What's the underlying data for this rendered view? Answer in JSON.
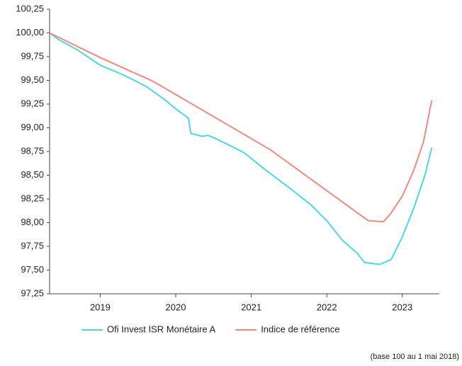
{
  "chart_data": {
    "type": "line",
    "x": [
      2018.33,
      2018.45,
      2018.7,
      2019.0,
      2019.3,
      2019.6,
      2019.7,
      2019.85,
      2020.0,
      2020.17,
      2020.2,
      2020.35,
      2020.43,
      2020.6,
      2020.9,
      2021.2,
      2021.25,
      2021.5,
      2021.8,
      2022.0,
      2022.2,
      2022.4,
      2022.5,
      2022.55,
      2022.7,
      2022.75,
      2022.85,
      2023.0,
      2023.15,
      2023.28,
      2023.3,
      2023.39
    ],
    "series": [
      {
        "name": "Ofi Invest ISR Monétaire A",
        "color": "#4dd6e6",
        "values": [
          100.0,
          99.93,
          99.82,
          99.66,
          99.56,
          99.44,
          null,
          99.3,
          99.2,
          99.1,
          98.94,
          98.91,
          98.92,
          98.86,
          98.74,
          98.55,
          null,
          98.37,
          98.18,
          98.02,
          97.82,
          97.68,
          97.58,
          null,
          97.56,
          null,
          97.61,
          97.85,
          98.15,
          null,
          98.5,
          98.79
        ]
      },
      {
        "name": "Indice de référence",
        "color": "#f2897f",
        "values": [
          100.0,
          null,
          null,
          99.74,
          null,
          null,
          99.49,
          null,
          null,
          null,
          null,
          null,
          null,
          null,
          null,
          null,
          98.77,
          null,
          null,
          null,
          null,
          null,
          null,
          98.02,
          null,
          98.01,
          98.1,
          98.28,
          98.55,
          98.85,
          null,
          99.29
        ]
      }
    ],
    "xlim": [
      2018.33,
      2023.49
    ],
    "xticks": [
      2019,
      2020,
      2021,
      2022,
      2023
    ],
    "ylim": [
      97.25,
      100.25
    ],
    "yticks": [
      {
        "value": 97.25,
        "label": "97,25"
      },
      {
        "value": 97.5,
        "label": "97,50"
      },
      {
        "value": 97.75,
        "label": "97,75"
      },
      {
        "value": 98.0,
        "label": "98,00"
      },
      {
        "value": 98.25,
        "label": "98,25"
      },
      {
        "value": 98.5,
        "label": "98,50"
      },
      {
        "value": 98.75,
        "label": "98,75"
      },
      {
        "value": 99.0,
        "label": "99,00"
      },
      {
        "value": 99.25,
        "label": "99,25"
      },
      {
        "value": 99.5,
        "label": "99,50"
      },
      {
        "value": 99.75,
        "label": "99,75"
      },
      {
        "value": 100.0,
        "label": "100,00"
      },
      {
        "value": 100.25,
        "label": "100,25"
      }
    ],
    "note": "(base 100 au 1 mai 2018)"
  }
}
